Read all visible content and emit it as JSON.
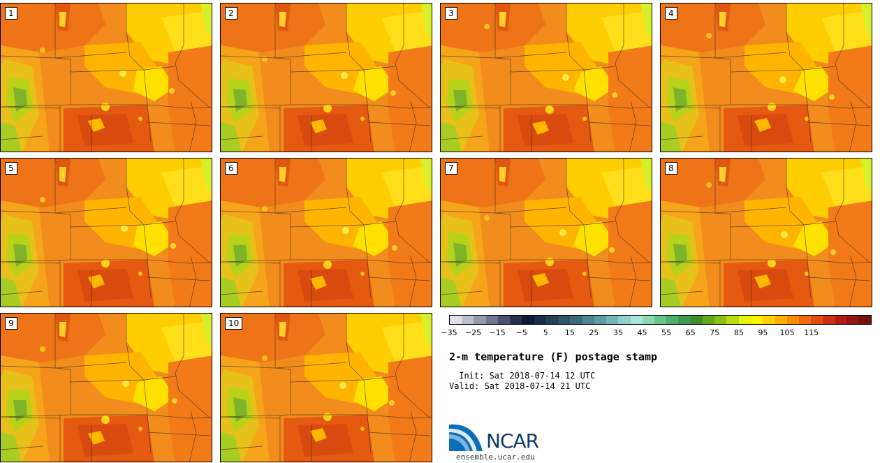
{
  "panels": [
    {
      "label": "1"
    },
    {
      "label": "2"
    },
    {
      "label": "3"
    },
    {
      "label": "4"
    },
    {
      "label": "5"
    },
    {
      "label": "6"
    },
    {
      "label": "7"
    },
    {
      "label": "8"
    },
    {
      "label": "9"
    },
    {
      "label": "10"
    }
  ],
  "colorbar": {
    "colors": [
      "#dfe1e8",
      "#bcc0cc",
      "#9499ab",
      "#6f7590",
      "#4a526e",
      "#27304e",
      "#0c1a36",
      "#1a2d48",
      "#243f56",
      "#2f5468",
      "#3b6a7c",
      "#4c8491",
      "#5e9ca4",
      "#74b5b4",
      "#8dd0cc",
      "#a6e6dd",
      "#8ed8b0",
      "#6cc48d",
      "#4eae6c",
      "#3e9a4f",
      "#3f8c2a",
      "#61a81e",
      "#89c015",
      "#b8dc10",
      "#e7f20d",
      "#fff200",
      "#ffd100",
      "#ffb000",
      "#ff8c00",
      "#f26a0a",
      "#e44c0f",
      "#cc3010",
      "#b01d10",
      "#911510",
      "#741210"
    ],
    "ticks": [
      "-35",
      "-25",
      "-15",
      "-5",
      "5",
      "15",
      "25",
      "35",
      "45",
      "55",
      "65",
      "75",
      "85",
      "95",
      "105",
      "115"
    ]
  },
  "title": "2-m temperature (F) postage stamp",
  "init": " Init: Sat 2018-07-14 12 UTC",
  "valid": "Valid: Sat 2018-07-14 21 UTC",
  "logo": {
    "text": "NCAR",
    "site": "ensemble.ucar.edu"
  }
}
